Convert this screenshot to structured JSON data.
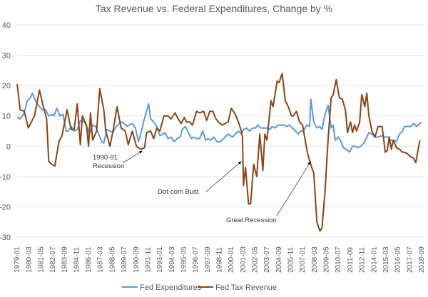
{
  "chart_data": {
    "type": "line",
    "title": "Tax Revenue vs. Federal Expenditures, Change by %",
    "xlabel": "",
    "ylabel": "",
    "ylim": [
      -30,
      40
    ],
    "yticks": [
      40,
      30,
      20,
      10,
      0,
      -10,
      -20,
      -30
    ],
    "xlim": [
      1979.0,
      2018.67
    ],
    "xtick_labels": [
      "1979-01",
      "1980-03",
      "1981-05",
      "1982-07",
      "1983-09",
      "1984-11",
      "1986-01",
      "1987-03",
      "1988-05",
      "1989-07",
      "1990-09",
      "1991-11",
      "1993-01",
      "1994-03",
      "1995-05",
      "1996-07",
      "1997-09",
      "1998-11",
      "2000-01",
      "2001-03",
      "2002-05",
      "2003-07",
      "2004-09",
      "2005-11",
      "2007-01",
      "2008-03",
      "2009-05",
      "2010-07",
      "2011-09",
      "2012-11",
      "2014-01",
      "2015-03",
      "2016-05",
      "2017-07",
      "2018-09"
    ],
    "grid": true,
    "legend_position": "bottom",
    "series": [
      {
        "name": "Fed Expenditures",
        "color": "#5b9bd5",
        "points": [
          [
            1979.0,
            9.5
          ],
          [
            1979.3,
            9
          ],
          [
            1979.7,
            11
          ],
          [
            1980.0,
            15
          ],
          [
            1980.3,
            16
          ],
          [
            1980.5,
            17.5
          ],
          [
            1980.8,
            15
          ],
          [
            1981.2,
            13
          ],
          [
            1981.5,
            12
          ],
          [
            1981.8,
            12
          ],
          [
            1982.1,
            10
          ],
          [
            1982.4,
            10.5
          ],
          [
            1982.6,
            10
          ],
          [
            1982.9,
            12.5
          ],
          [
            1983.2,
            10
          ],
          [
            1983.5,
            10.5
          ],
          [
            1983.8,
            5
          ],
          [
            1984.0,
            5
          ],
          [
            1984.3,
            6.5
          ],
          [
            1984.6,
            5
          ],
          [
            1984.9,
            5.5
          ],
          [
            1985.2,
            8.5
          ],
          [
            1985.6,
            8
          ],
          [
            1985.9,
            6
          ],
          [
            1986.1,
            4
          ],
          [
            1986.4,
            7
          ],
          [
            1986.7,
            6.5
          ],
          [
            1987.0,
            4
          ],
          [
            1987.3,
            1.5
          ],
          [
            1987.5,
            1
          ],
          [
            1987.8,
            5.5
          ],
          [
            1988.1,
            5
          ],
          [
            1988.4,
            4.5
          ],
          [
            1988.7,
            6.5
          ],
          [
            1988.9,
            7
          ],
          [
            1989.2,
            8
          ],
          [
            1989.5,
            7.5
          ],
          [
            1989.8,
            6.5
          ],
          [
            1990.0,
            7
          ],
          [
            1990.3,
            7.5
          ],
          [
            1990.6,
            6
          ],
          [
            1990.9,
            1.5
          ],
          [
            1991.2,
            5
          ],
          [
            1991.4,
            8
          ],
          [
            1991.9,
            14
          ],
          [
            1992.1,
            9
          ],
          [
            1992.4,
            8
          ],
          [
            1992.7,
            6.5
          ],
          [
            1993.0,
            3.5
          ],
          [
            1993.3,
            4
          ],
          [
            1993.5,
            4.5
          ],
          [
            1993.8,
            2.5
          ],
          [
            1994.1,
            3
          ],
          [
            1994.4,
            1.5
          ],
          [
            1994.7,
            2.5
          ],
          [
            1995.0,
            3
          ],
          [
            1995.2,
            5.5
          ],
          [
            1995.5,
            6.5
          ],
          [
            1995.8,
            4.5
          ],
          [
            1996.1,
            2.5
          ],
          [
            1996.3,
            3
          ],
          [
            1996.6,
            2.5
          ],
          [
            1996.9,
            2.5
          ],
          [
            1997.2,
            5
          ],
          [
            1997.5,
            2
          ],
          [
            1997.7,
            2.5
          ],
          [
            1998.0,
            2
          ],
          [
            1998.3,
            3
          ],
          [
            1998.6,
            1.5
          ],
          [
            1998.9,
            1.5
          ],
          [
            1999.1,
            2
          ],
          [
            1999.4,
            3
          ],
          [
            1999.7,
            4
          ],
          [
            2000.1,
            3
          ],
          [
            2000.4,
            4
          ],
          [
            2000.7,
            5
          ],
          [
            2001.0,
            4
          ],
          [
            2001.2,
            5.5
          ],
          [
            2001.5,
            6
          ],
          [
            2001.8,
            5
          ],
          [
            2002.1,
            6
          ],
          [
            2002.4,
            6
          ],
          [
            2002.6,
            7
          ],
          [
            2002.9,
            6
          ],
          [
            2003.2,
            6
          ],
          [
            2003.5,
            6
          ],
          [
            2003.8,
            5.5
          ],
          [
            2004.0,
            6.5
          ],
          [
            2004.3,
            6
          ],
          [
            2004.6,
            7
          ],
          [
            2004.9,
            7
          ],
          [
            2005.2,
            7
          ],
          [
            2005.4,
            6.5
          ],
          [
            2005.7,
            7
          ],
          [
            2006.0,
            6
          ],
          [
            2006.3,
            5
          ],
          [
            2006.6,
            4
          ],
          [
            2006.8,
            5
          ],
          [
            2007.1,
            5
          ],
          [
            2007.4,
            7
          ],
          [
            2007.7,
            6.5
          ],
          [
            2007.8,
            15.5
          ],
          [
            2008.1,
            8
          ],
          [
            2008.4,
            6
          ],
          [
            2008.7,
            6.5
          ],
          [
            2008.9,
            5.5
          ],
          [
            2009.2,
            10.5
          ],
          [
            2009.5,
            13.5
          ],
          [
            2009.8,
            6
          ],
          [
            2010.0,
            7
          ],
          [
            2010.2,
            2
          ],
          [
            2010.5,
            3
          ],
          [
            2010.7,
            2
          ],
          [
            2011.0,
            -0.5
          ],
          [
            2011.3,
            -1
          ],
          [
            2011.6,
            -2
          ],
          [
            2011.9,
            0
          ],
          [
            2012.1,
            0
          ],
          [
            2012.4,
            -0.5
          ],
          [
            2012.7,
            0
          ],
          [
            2013.0,
            1
          ],
          [
            2013.3,
            3
          ],
          [
            2013.5,
            4.5
          ],
          [
            2013.8,
            4
          ],
          [
            2014.1,
            3
          ],
          [
            2014.4,
            3
          ],
          [
            2014.8,
            3.5
          ],
          [
            2015.1,
            3
          ],
          [
            2015.4,
            3
          ],
          [
            2015.6,
            2
          ],
          [
            2015.9,
            2
          ],
          [
            2016.2,
            1.5
          ],
          [
            2016.5,
            4
          ],
          [
            2016.8,
            5
          ],
          [
            2017.0,
            6.5
          ],
          [
            2017.3,
            6.5
          ],
          [
            2017.6,
            6.5
          ],
          [
            2017.9,
            7.5
          ],
          [
            2018.2,
            6.5
          ],
          [
            2018.67,
            8
          ]
        ]
      },
      {
        "name": "Fed Tax Revenue",
        "color": "#8b4513",
        "points": [
          [
            1979.0,
            20.5
          ],
          [
            1979.3,
            12
          ],
          [
            1979.7,
            11.5
          ],
          [
            1980.1,
            6
          ],
          [
            1980.7,
            10
          ],
          [
            1981.2,
            18.5
          ],
          [
            1981.5,
            14
          ],
          [
            1981.9,
            9
          ],
          [
            1982.1,
            -5
          ],
          [
            1982.4,
            -6
          ],
          [
            1982.7,
            -6.5
          ],
          [
            1983.1,
            1.5
          ],
          [
            1983.4,
            3.5
          ],
          [
            1983.9,
            12
          ],
          [
            1984.3,
            5.5
          ],
          [
            1984.6,
            5.5
          ],
          [
            1984.9,
            14
          ],
          [
            1985.2,
            0.5
          ],
          [
            1985.4,
            10
          ],
          [
            1985.8,
            7
          ],
          [
            1986.0,
            0
          ],
          [
            1986.2,
            11
          ],
          [
            1986.4,
            2
          ],
          [
            1986.8,
            5
          ],
          [
            1987.1,
            19
          ],
          [
            1987.5,
            12
          ],
          [
            1987.7,
            5
          ],
          [
            1988.1,
            0
          ],
          [
            1988.4,
            5
          ],
          [
            1988.8,
            13
          ],
          [
            1989.2,
            6
          ],
          [
            1989.6,
            5
          ],
          [
            1989.9,
            0.5
          ],
          [
            1990.3,
            5
          ],
          [
            1990.7,
            0
          ],
          [
            1991.1,
            -1
          ],
          [
            1991.5,
            -0.5
          ],
          [
            1991.7,
            4.5
          ],
          [
            1992.1,
            5
          ],
          [
            1992.4,
            2.5
          ],
          [
            1992.7,
            6
          ],
          [
            1993.0,
            5
          ],
          [
            1993.4,
            10
          ],
          [
            1993.8,
            10
          ],
          [
            1994.1,
            9
          ],
          [
            1994.5,
            11
          ],
          [
            1994.8,
            9
          ],
          [
            1995.1,
            7.5
          ],
          [
            1995.4,
            9.5
          ],
          [
            1995.6,
            8
          ],
          [
            1995.9,
            8
          ],
          [
            1996.2,
            7
          ],
          [
            1996.6,
            11.5
          ],
          [
            1996.9,
            11
          ],
          [
            1997.3,
            11.5
          ],
          [
            1997.6,
            8.5
          ],
          [
            1997.9,
            11.5
          ],
          [
            1998.2,
            11.5
          ],
          [
            1998.5,
            9
          ],
          [
            1998.9,
            7.5
          ],
          [
            1999.1,
            7
          ],
          [
            1999.4,
            7.5
          ],
          [
            1999.7,
            8
          ],
          [
            2000.0,
            12.5
          ],
          [
            2000.4,
            10.5
          ],
          [
            2000.7,
            8
          ],
          [
            2001.0,
            5
          ],
          [
            2001.1,
            3
          ],
          [
            2001.2,
            -13
          ],
          [
            2001.4,
            -7
          ],
          [
            2001.7,
            -19
          ],
          [
            2001.9,
            -19
          ],
          [
            2002.2,
            -6
          ],
          [
            2002.5,
            -10
          ],
          [
            2002.8,
            4
          ],
          [
            2003.1,
            -8
          ],
          [
            2003.3,
            4
          ],
          [
            2003.5,
            2
          ],
          [
            2003.9,
            15
          ],
          [
            2004.1,
            13
          ],
          [
            2004.5,
            21.5
          ],
          [
            2004.7,
            21
          ],
          [
            2005.0,
            24
          ],
          [
            2005.3,
            15
          ],
          [
            2005.6,
            13
          ],
          [
            2005.9,
            10
          ],
          [
            2006.1,
            10
          ],
          [
            2006.4,
            11.5
          ],
          [
            2006.7,
            8
          ],
          [
            2007.0,
            7
          ],
          [
            2007.3,
            1
          ],
          [
            2007.5,
            -2.5
          ],
          [
            2007.8,
            -6
          ],
          [
            2008.1,
            -9
          ],
          [
            2008.4,
            -25
          ],
          [
            2008.7,
            -28
          ],
          [
            2008.9,
            -27
          ],
          [
            2009.2,
            -15
          ],
          [
            2009.5,
            2
          ],
          [
            2009.8,
            16
          ],
          [
            2010.0,
            17
          ],
          [
            2010.3,
            22
          ],
          [
            2010.6,
            16
          ],
          [
            2010.9,
            15.5
          ],
          [
            2011.2,
            12
          ],
          [
            2011.4,
            4.5
          ],
          [
            2011.7,
            8
          ],
          [
            2011.9,
            4.5
          ],
          [
            2012.1,
            7
          ],
          [
            2012.3,
            5
          ],
          [
            2012.6,
            8
          ],
          [
            2012.8,
            17
          ],
          [
            2013.1,
            13
          ],
          [
            2013.3,
            17.5
          ],
          [
            2013.5,
            10
          ],
          [
            2013.8,
            5
          ],
          [
            2014.1,
            3
          ],
          [
            2014.4,
            6.5
          ],
          [
            2014.8,
            6.5
          ],
          [
            2015.1,
            -2
          ],
          [
            2015.3,
            -1.5
          ],
          [
            2015.5,
            3
          ],
          [
            2015.7,
            -1
          ],
          [
            2015.9,
            2
          ],
          [
            2016.2,
            -0.5
          ],
          [
            2016.5,
            -1
          ],
          [
            2016.8,
            -2
          ],
          [
            2017.0,
            -2
          ],
          [
            2017.3,
            -2.5
          ],
          [
            2017.6,
            -3.5
          ],
          [
            2017.9,
            -4
          ],
          [
            2018.1,
            -5.4
          ],
          [
            2018.5,
            2
          ]
        ]
      }
    ],
    "annotations": [
      {
        "lines": [
          "1990-91",
          "Recession"
        ],
        "target": [
          1991.3,
          -1.5
        ]
      },
      {
        "lines": [
          "Dot-com Bust"
        ],
        "target": [
          2001.0,
          -5
        ]
      },
      {
        "lines": [
          "Great Recession"
        ],
        "target": [
          2007.8,
          -5
        ]
      }
    ]
  }
}
